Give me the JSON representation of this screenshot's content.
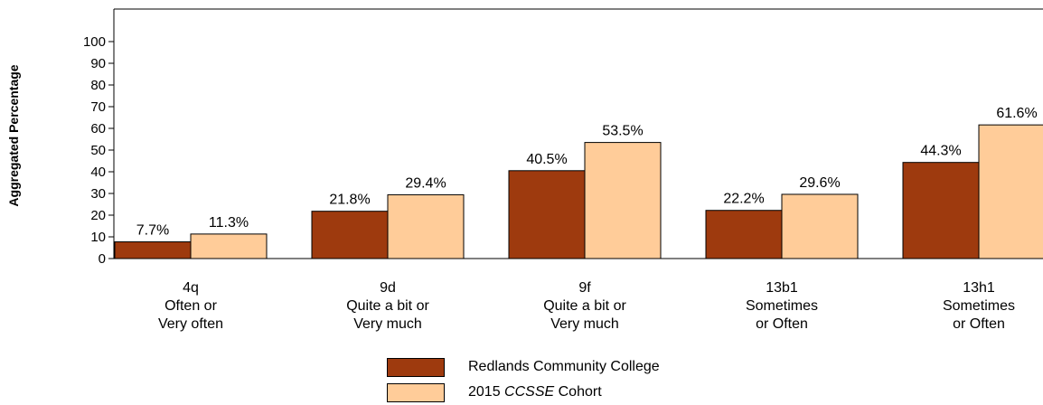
{
  "chart_data": {
    "type": "bar",
    "ylabel": "Aggregated Percentage",
    "ylim": [
      0,
      100
    ],
    "yticks": [
      0,
      10,
      20,
      30,
      40,
      50,
      60,
      70,
      80,
      90,
      100
    ],
    "categories": [
      [
        "4q",
        "Often or",
        "Very often"
      ],
      [
        "9d",
        "Quite a bit or",
        "Very much"
      ],
      [
        "9f",
        "Quite a bit or",
        "Very much"
      ],
      [
        "13b1",
        "Sometimes",
        "or Often"
      ],
      [
        "13h1",
        "Sometimes",
        "or Often"
      ]
    ],
    "series": [
      {
        "name": "Redlands Community College",
        "color": "#9e3a0e",
        "values": [
          7.7,
          21.8,
          40.5,
          22.2,
          44.3
        ],
        "labels": [
          "7.7%",
          "21.8%",
          "40.5%",
          "22.2%",
          "44.3%"
        ]
      },
      {
        "name": "2015 CCSSE Cohort",
        "color": "#ffcc99",
        "values": [
          11.3,
          29.4,
          53.5,
          29.6,
          61.6
        ],
        "labels": [
          "11.3%",
          "29.4%",
          "53.5%",
          "29.6%",
          "61.6%"
        ]
      }
    ],
    "legend": {
      "position": "bottom-center",
      "items": [
        {
          "text": "Redlands Community College"
        },
        {
          "prefix": "2015 ",
          "italic": "CCSSE",
          "suffix": " Cohort"
        }
      ]
    },
    "grid": false
  }
}
